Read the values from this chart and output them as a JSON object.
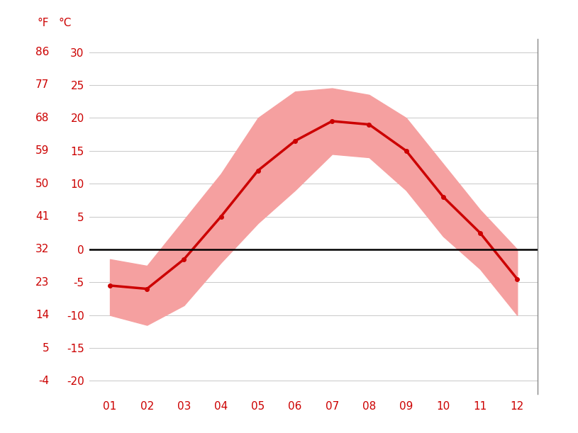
{
  "months": [
    1,
    2,
    3,
    4,
    5,
    6,
    7,
    8,
    9,
    10,
    11,
    12
  ],
  "month_labels": [
    "01",
    "02",
    "03",
    "04",
    "05",
    "06",
    "07",
    "08",
    "09",
    "10",
    "11",
    "12"
  ],
  "avg_temp_c": [
    -5.5,
    -6.0,
    -1.5,
    5.0,
    12.0,
    16.5,
    19.5,
    19.0,
    15.0,
    8.0,
    2.5,
    -4.5
  ],
  "max_temp_c": [
    -1.5,
    -2.5,
    4.5,
    11.5,
    20.0,
    24.0,
    24.5,
    23.5,
    20.0,
    13.0,
    6.0,
    0.0
  ],
  "min_temp_c": [
    -10.0,
    -11.5,
    -8.5,
    -2.0,
    4.0,
    9.0,
    14.5,
    14.0,
    9.0,
    2.0,
    -3.0,
    -10.0
  ],
  "y_ticks_c": [
    -20,
    -15,
    -10,
    -5,
    0,
    5,
    10,
    15,
    20,
    25,
    30
  ],
  "y_ticks_f": [
    -4,
    5,
    14,
    23,
    32,
    41,
    50,
    59,
    68,
    77,
    86
  ],
  "ylim_c": [
    -22,
    32
  ],
  "line_color": "#cc0000",
  "band_color": "#f5a0a0",
  "zero_line_color": "#000000",
  "grid_color": "#c8c8c8",
  "tick_color": "#cc0000",
  "background_color": "#ffffff",
  "marker_size": 4,
  "line_width": 2.5,
  "right_spine_color": "#888888",
  "label_fontsize": 11,
  "header_fontsize": 11
}
